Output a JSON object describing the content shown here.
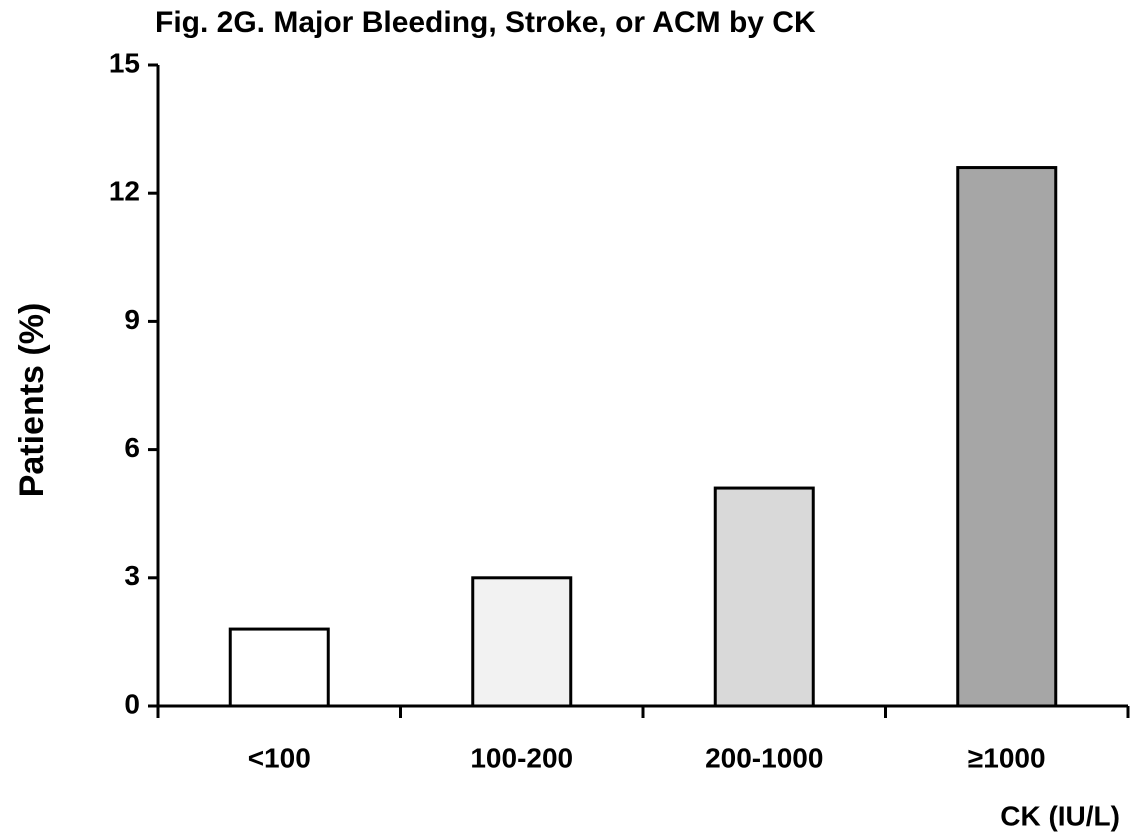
{
  "chart_data": {
    "type": "bar",
    "title": "Fig. 2G. Major Bleeding, Stroke, or ACM by CK",
    "categories": [
      "<100",
      "100-200",
      "200-1000",
      "≥1000"
    ],
    "values": [
      1.8,
      3.0,
      5.1,
      12.6
    ],
    "colors": [
      "#ffffff",
      "#f2f2f2",
      "#d9d9d9",
      "#a6a6a6"
    ],
    "ylabel": "Patients (%)",
    "xlabel": "CK (IU/L)",
    "ylim": [
      0,
      15
    ],
    "yticks": [
      0,
      3,
      6,
      9,
      12,
      15
    ],
    "grid": false
  }
}
